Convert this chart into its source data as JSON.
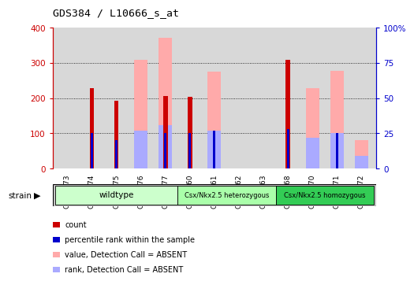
{
  "title": "GDS384 / L10666_s_at",
  "samples": [
    "GSM7773",
    "GSM7774",
    "GSM7775",
    "GSM7776",
    "GSM7777",
    "GSM7760",
    "GSM7761",
    "GSM7762",
    "GSM7763",
    "GSM7768",
    "GSM7770",
    "GSM7771",
    "GSM7772"
  ],
  "count_values": [
    0,
    228,
    193,
    0,
    205,
    204,
    0,
    0,
    0,
    309,
    0,
    0,
    0
  ],
  "percentile_rank_pct": [
    0,
    25,
    20,
    0,
    25,
    25,
    27,
    0,
    0,
    28,
    0,
    25,
    0
  ],
  "absent_value": [
    0,
    0,
    0,
    309,
    370,
    0,
    275,
    0,
    0,
    0,
    228,
    278,
    80
  ],
  "absent_rank_pct": [
    0,
    0,
    0,
    27,
    31,
    0,
    27,
    0,
    0,
    0,
    22,
    25,
    9
  ],
  "ylim_left": [
    0,
    400
  ],
  "ylim_right": [
    0,
    100
  ],
  "yticks_left": [
    0,
    100,
    200,
    300,
    400
  ],
  "yticks_right": [
    0,
    25,
    50,
    75,
    100
  ],
  "ytick_labels_left": [
    "0",
    "100",
    "200",
    "300",
    "400"
  ],
  "ytick_labels_right": [
    "0",
    "25",
    "50",
    "75",
    "100%"
  ],
  "color_count": "#cc0000",
  "color_percentile": "#0000cc",
  "color_absent_value": "#ffaaaa",
  "color_absent_rank": "#aaaaff",
  "groups": [
    {
      "label": "wildtype",
      "start": 0,
      "end": 5,
      "color": "#ccffcc"
    },
    {
      "label": "Csx/Nkx2.5 heterozygous",
      "start": 5,
      "end": 9,
      "color": "#aaffaa"
    },
    {
      "label": "Csx/Nkx2.5 homozygous",
      "start": 9,
      "end": 13,
      "color": "#33cc55"
    }
  ],
  "background_color": "#ffffff",
  "plot_bg": "#d8d8d8",
  "legend_items": [
    {
      "label": "count",
      "color": "#cc0000"
    },
    {
      "label": "percentile rank within the sample",
      "color": "#0000cc"
    },
    {
      "label": "value, Detection Call = ABSENT",
      "color": "#ffaaaa"
    },
    {
      "label": "rank, Detection Call = ABSENT",
      "color": "#aaaaff"
    }
  ]
}
